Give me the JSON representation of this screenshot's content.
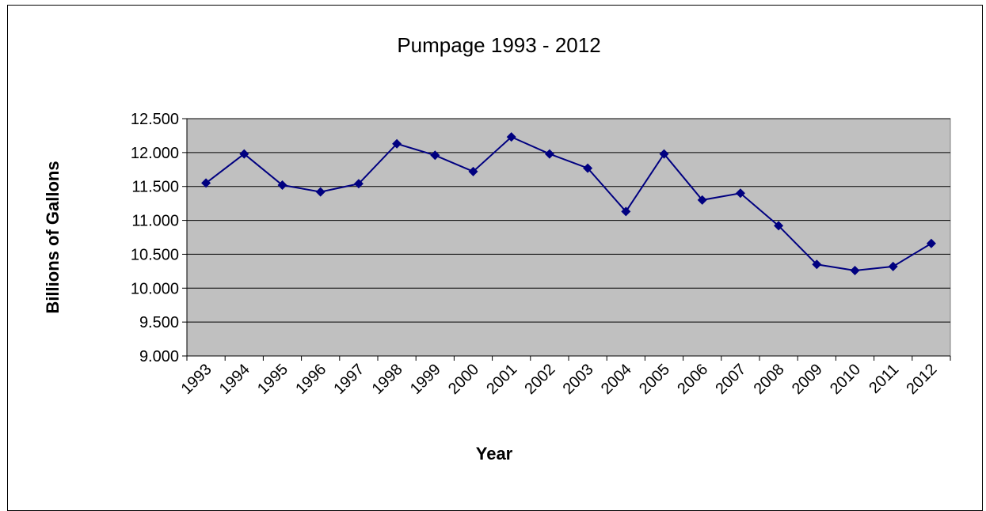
{
  "chart_data": {
    "type": "line",
    "title": "Pumpage 1993 - 2012",
    "xlabel": "Year",
    "ylabel": "Billions of Gallons",
    "categories": [
      "1993",
      "1994",
      "1995",
      "1996",
      "1997",
      "1998",
      "1999",
      "2000",
      "2001",
      "2002",
      "2003",
      "2004",
      "2005",
      "2006",
      "2007",
      "2008",
      "2009",
      "2010",
      "2011",
      "2012"
    ],
    "series": [
      {
        "values": [
          11.55,
          11.98,
          11.52,
          11.42,
          11.54,
          12.13,
          11.96,
          11.72,
          12.23,
          11.98,
          11.77,
          11.13,
          11.98,
          11.3,
          11.4,
          10.92,
          10.35,
          10.26,
          10.32,
          10.66
        ],
        "color": "#000080"
      }
    ],
    "yticks": [
      "9.000",
      "9.500",
      "10.000",
      "10.500",
      "11.000",
      "11.500",
      "12.000",
      "12.500"
    ],
    "ylim": [
      9.0,
      12.5
    ],
    "grid": true,
    "legend": "none",
    "plot_background": "#c0c0c0",
    "line_color": "#000080"
  }
}
